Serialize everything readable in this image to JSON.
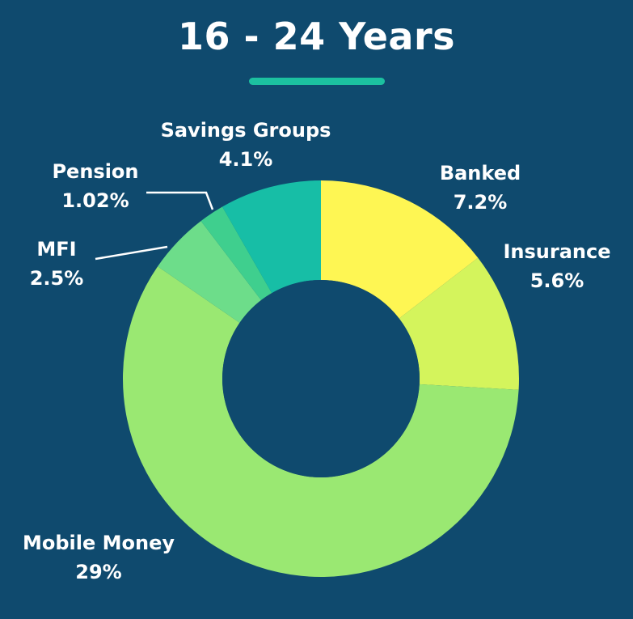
{
  "background": "#0f4a6e",
  "chart_data": {
    "type": "pie",
    "title": "16 - 24 Years",
    "hole_color": "#0f4a6e",
    "slices": [
      {
        "label": "Banked",
        "value_text": "7.2%",
        "value": 7.2,
        "color": "#fef653"
      },
      {
        "label": "Insurance",
        "value_text": "5.6%",
        "value": 5.6,
        "color": "#d4f45c"
      },
      {
        "label": "Mobile Money",
        "value_text": "29%",
        "value": 29,
        "color": "#9ae872"
      },
      {
        "label": "MFI",
        "value_text": "2.5%",
        "value": 2.5,
        "color": "#6ddd8a"
      },
      {
        "label": "Pension",
        "value_text": "1.02%",
        "value": 1.02,
        "color": "#3fcf8e"
      },
      {
        "label": "Savings Groups",
        "value_text": "4.1%",
        "value": 4.1,
        "color": "#17bea6"
      }
    ]
  }
}
